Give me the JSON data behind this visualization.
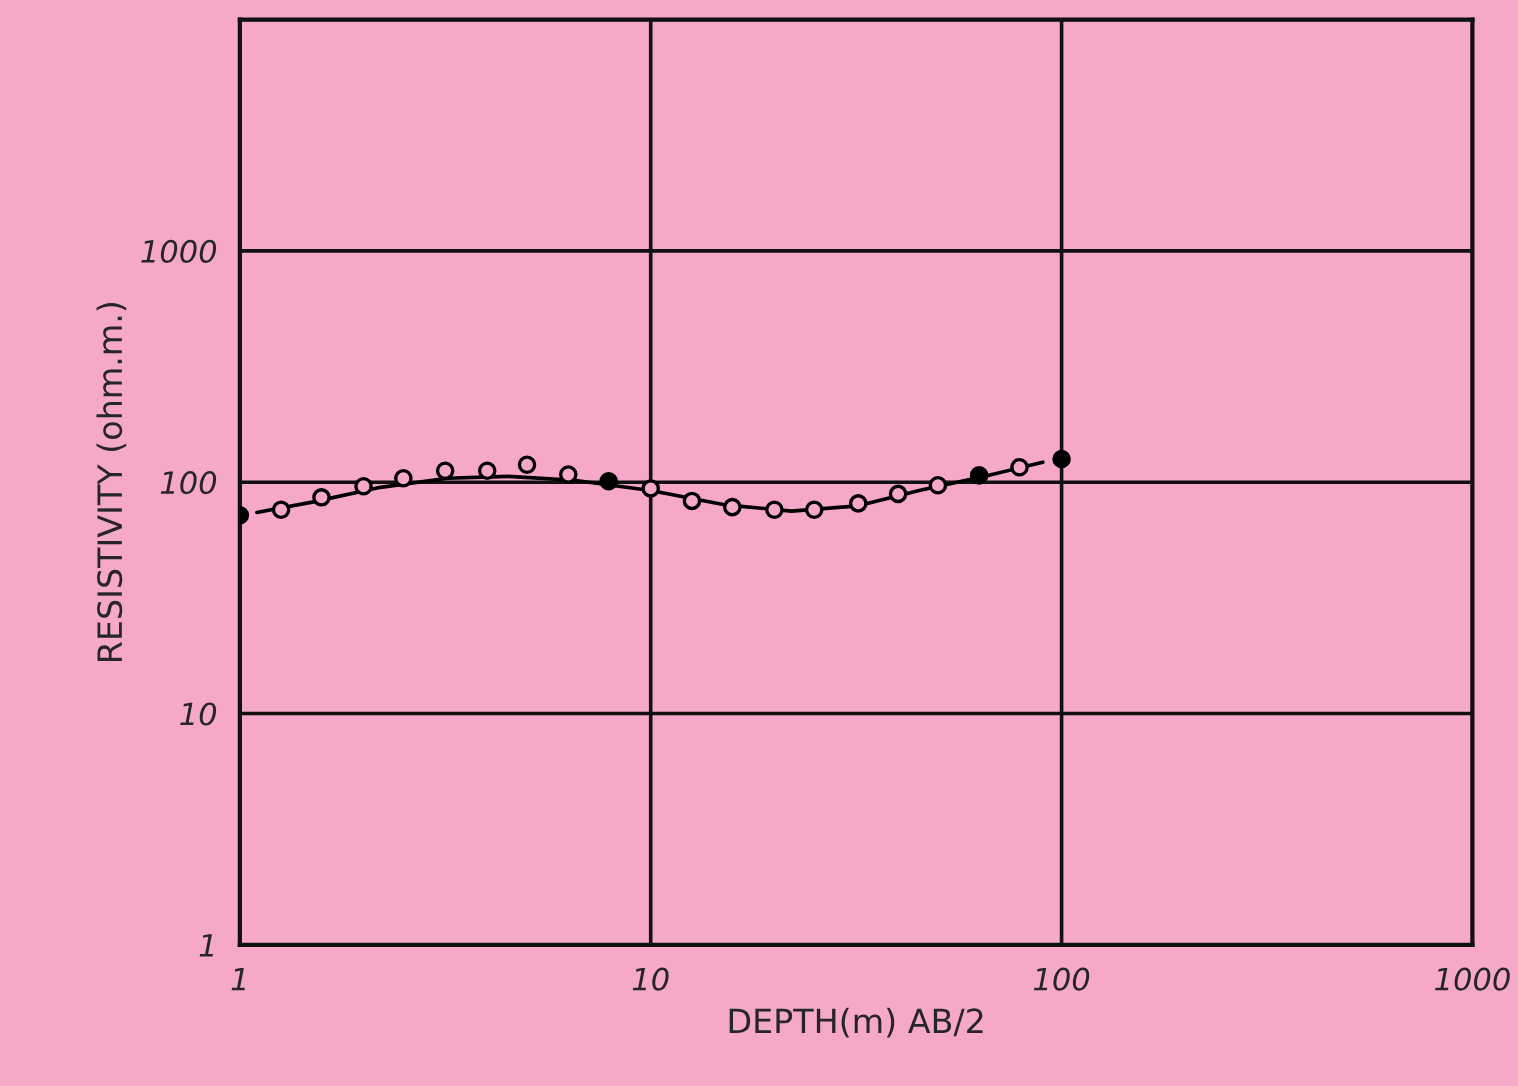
{
  "chart_data": {
    "type": "line",
    "xlabel": "DEPTH(m) AB/2",
    "ylabel": "RESISTIVITY (ohm.m.)",
    "log": "xy",
    "grid": true,
    "marker": "circle",
    "xlim": [
      1,
      1000
    ],
    "xticks": [
      1,
      10,
      100,
      1000
    ],
    "ylim": [
      1,
      10000
    ],
    "yticks": [
      1,
      10,
      100,
      1000,
      {
        "value": 10000,
        "label": null
      }
    ],
    "series": [
      {
        "color": "#000000",
        "marker": "none",
        "x": [
          1.1,
          1.5,
          2.2,
          3.2,
          4.5,
          6.5,
          10,
          15,
          22,
          32,
          45,
          65,
          90
        ],
        "values": [
          74,
          82,
          95,
          104,
          106,
          102,
          92,
          80,
          75,
          79,
          92,
          106,
          122
        ]
      },
      {
        "type": "scatter",
        "color": "#f5a8c8",
        "x": [
          1.26,
          1.58,
          2,
          2.5,
          3.16,
          4,
          5,
          6.3,
          10,
          12.6,
          15.8,
          20,
          25,
          32,
          40,
          50,
          79
        ],
        "values": [
          76,
          86,
          96,
          104,
          112,
          112,
          119,
          108,
          94,
          83,
          78,
          76,
          76,
          81,
          89,
          97,
          116
        ]
      },
      {
        "type": "scatter",
        "color": "#000000",
        "x": [
          1,
          7.9,
          63,
          100
        ],
        "values": [
          72,
          101,
          107,
          126
        ]
      }
    ]
  }
}
